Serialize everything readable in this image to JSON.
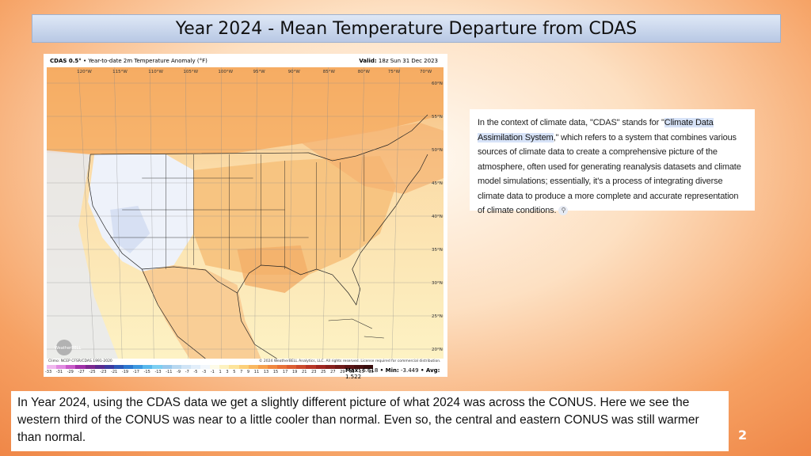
{
  "slide": {
    "title": "Year 2024 - Mean Temperature Departure from CDAS",
    "page_number": "2"
  },
  "map": {
    "model": "CDAS 0.5°",
    "subtitle": " • Year-to-date 2m Temperature Anomaly (°F)",
    "valid_label": "Valid:",
    "valid_value": " 18z Sun 31 Dec 2023",
    "lon_labels": [
      "120°W",
      "115°W",
      "110°W",
      "105°W",
      "100°W",
      "95°W",
      "90°W",
      "85°W",
      "80°W",
      "75°W",
      "70°W"
    ],
    "lat_labels": [
      "60°N",
      "55°N",
      "50°N",
      "45°N",
      "40°N",
      "35°N",
      "30°N",
      "25°N",
      "20°N"
    ],
    "climo": "Climo: NCEP CFSR/CDAS 1991-2020",
    "copyright": "© 2024 WeatherBELL Analytics, LLC. All rights reserved. License required for commercial distribution.",
    "logo": "WeatherBELL",
    "colorbar_ticks": [
      "-33",
      "-31",
      "-29",
      "-27",
      "-25",
      "-23",
      "-21",
      "-19",
      "-17",
      "-15",
      "-13",
      "-11",
      "-9",
      "-7",
      "-5",
      "-3",
      "-1",
      "1",
      "3",
      "5",
      "7",
      "9",
      "11",
      "13",
      "15",
      "17",
      "19",
      "21",
      "23",
      "25",
      "27",
      "29",
      "31",
      "33",
      "35"
    ],
    "colorbar_colors": [
      "#f0b8ee",
      "#e08ae0",
      "#c85ac8",
      "#a030a8",
      "#7c2890",
      "#5a2a90",
      "#3c3aa0",
      "#2c58b8",
      "#2c78d0",
      "#3c98e0",
      "#58b8ec",
      "#7ccff2",
      "#98c8ec",
      "#b8d8f0",
      "#d0e4f6",
      "#e2eefa",
      "#f2f7fc",
      "#fdfbe8",
      "#fdf2c0",
      "#fde49a",
      "#fcd07a",
      "#f9b860",
      "#f6a04c",
      "#f08840",
      "#e87238",
      "#dc5e32",
      "#cc4a2c",
      "#b83626",
      "#a02620",
      "#88201c",
      "#701a18",
      "#5a1414",
      "#481010",
      "#380c0c"
    ],
    "stats": {
      "max_label": "Max:",
      "max": " 6.618",
      "min_label": " • Min:",
      "min": " -3.449",
      "avg_label": " • Avg:",
      "avg": " 1.522"
    }
  },
  "definition": {
    "text_before": "In the context of climate data, \"CDAS\" stands for \"",
    "highlight": "Climate Data Assimilation System",
    "text_after": ",\" which refers to a system that combines various sources of climate data to create a comprehensive picture of the atmosphere, often used for generating reanalysis datasets and climate model simulations; essentially, it's a process of integrating diverse climate data to produce a more complete and accurate representation of climate conditions.",
    "link_icon": "link-icon"
  },
  "note": {
    "text": "In Year 2024, using the CDAS data we get a slightly different picture of what 2024 was across the CONUS.  Here we see the western third of the CONUS was near to a little cooler than normal.  Even so, the central and eastern CONUS was still warmer than  normal."
  }
}
